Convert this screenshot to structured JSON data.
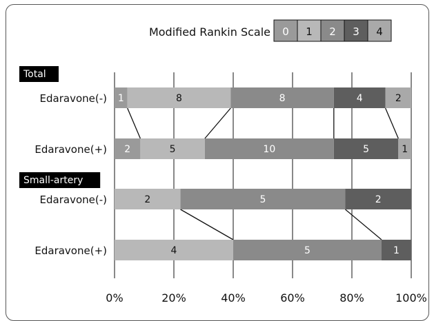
{
  "chart_data": {
    "type": "bar",
    "orientation": "horizontal",
    "stacked": "percent",
    "legend": {
      "title": "Modified Rankin Scale",
      "entries": [
        "0",
        "1",
        "2",
        "3",
        "4"
      ],
      "placement": "top"
    },
    "colors": {
      "0": "#9a9a9a",
      "1": "#b8b8b8",
      "2": "#8a8a8a",
      "3": "#5e5e5e",
      "4": "#a9a9a9"
    },
    "groups": [
      {
        "name": "Total",
        "rows": [
          {
            "label": "Edaravone(-)",
            "counts": [
              1,
              8,
              8,
              4,
              2
            ]
          },
          {
            "label": "Edaravone(+)",
            "counts": [
              2,
              5,
              10,
              5,
              1
            ]
          }
        ]
      },
      {
        "name": "Small-artery",
        "rows": [
          {
            "label": "Edaravone(-)",
            "counts": [
              0,
              2,
              5,
              2,
              0
            ]
          },
          {
            "label": "Edaravone(+)",
            "counts": [
              0,
              4,
              5,
              1,
              0
            ]
          }
        ]
      }
    ],
    "x_ticks": [
      "0%",
      "20%",
      "40%",
      "60%",
      "80%",
      "100%"
    ],
    "xlim": [
      0,
      100
    ],
    "grid": true,
    "connector_lines": true
  }
}
